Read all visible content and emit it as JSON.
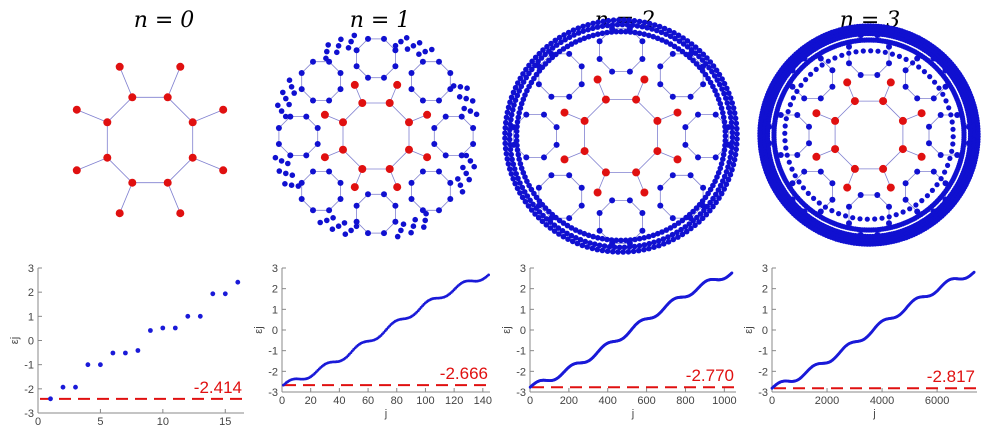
{
  "panels": [
    {
      "title": "n = 0",
      "level": 0
    },
    {
      "title": "n = 1",
      "level": 1
    },
    {
      "title": "n = 2",
      "level": 2
    },
    {
      "title": "n = 3",
      "level": 3
    }
  ],
  "colors": {
    "inner_node": "#e01010",
    "outer_node": "#1010d0",
    "edge": "#8080d0",
    "dash": "#e01010",
    "series": "#1a1ad8"
  },
  "chart_data": [
    {
      "type": "scatter",
      "xlabel": "j",
      "ylabel": "εj",
      "xlim": [
        0,
        16.5
      ],
      "ylim": [
        -3,
        3
      ],
      "xticks": [
        0,
        5,
        10,
        15
      ],
      "yticks": [
        -3,
        -2,
        -1,
        0,
        1,
        2,
        3
      ],
      "x": [
        1,
        2,
        3,
        4,
        5,
        6,
        7,
        8,
        9,
        10,
        11,
        12,
        13,
        14,
        15,
        16
      ],
      "y": [
        -2.414,
        -1.932,
        -1.932,
        -1.0,
        -1.0,
        -0.518,
        -0.518,
        -0.414,
        0.414,
        0.518,
        0.518,
        1.0,
        1.0,
        1.932,
        1.932,
        2.414
      ],
      "min_value": -2.414,
      "min_label": "-2.414",
      "N": 16
    },
    {
      "type": "scatter",
      "xlabel": "j",
      "ylabel": "εj",
      "xlim": [
        0,
        145
      ],
      "ylim": [
        -3,
        3
      ],
      "xticks": [
        0,
        20,
        40,
        60,
        80,
        100,
        120,
        140
      ],
      "yticks": [
        -3,
        -2,
        -1,
        0,
        1,
        2,
        3
      ],
      "min_value": -2.666,
      "min_label": "-2.666",
      "N": 144
    },
    {
      "type": "scatter",
      "xlabel": "j",
      "ylabel": "εj",
      "xlim": [
        0,
        1060
      ],
      "ylim": [
        -3,
        3
      ],
      "xticks": [
        0,
        200,
        400,
        600,
        800,
        1000
      ],
      "yticks": [
        -3,
        -2,
        -1,
        0,
        1,
        2,
        3
      ],
      "min_value": -2.77,
      "min_label": "-2.770",
      "N": 1040
    },
    {
      "type": "scatter",
      "xlabel": "j",
      "ylabel": "εj",
      "xlim": [
        0,
        7450
      ],
      "ylim": [
        -3,
        3
      ],
      "xticks": [
        0,
        2000,
        4000,
        6000
      ],
      "yticks": [
        -3,
        -2,
        -1,
        0,
        1,
        2,
        3
      ],
      "min_value": -2.817,
      "min_label": "-2.817",
      "N": 7360
    }
  ]
}
